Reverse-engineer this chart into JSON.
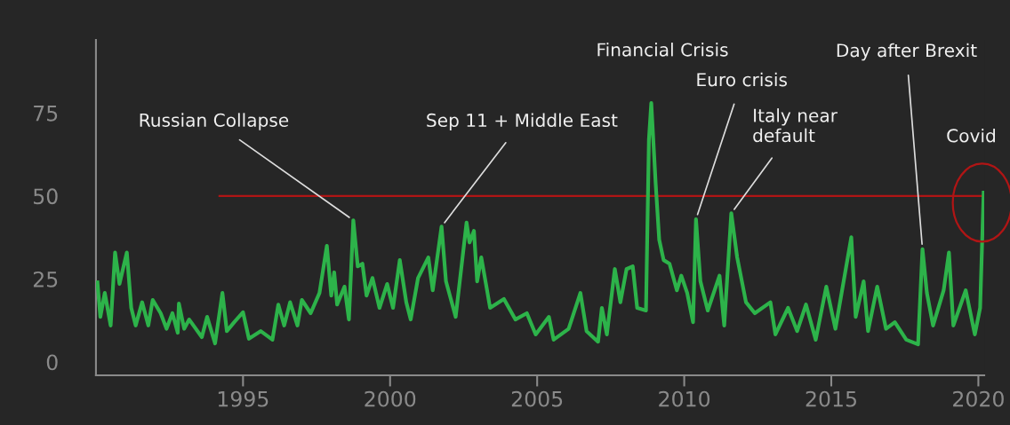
{
  "chart_data": {
    "type": "line",
    "xlim": [
      1990,
      2020.2
    ],
    "ylim": [
      -4,
      97
    ],
    "xticks": [
      1995,
      2000,
      2005,
      2010,
      2015,
      2020
    ],
    "yticks": [
      0,
      25,
      50,
      75
    ],
    "grid": false,
    "marker": "none",
    "line_style": "solid",
    "series": [
      {
        "color": "#2db34a",
        "x": [
          1990.05,
          1990.15,
          1990.3,
          1990.5,
          1990.65,
          1990.8,
          1991.05,
          1991.2,
          1991.35,
          1991.57,
          1991.78,
          1991.93,
          1992.2,
          1992.4,
          1992.6,
          1992.78,
          1992.82,
          1993.0,
          1993.17,
          1993.6,
          1993.78,
          1994.05,
          1994.3,
          1994.45,
          1994.7,
          1995.0,
          1995.2,
          1995.6,
          1996.0,
          1996.2,
          1996.4,
          1996.6,
          1996.85,
          1997.0,
          1997.3,
          1997.6,
          1997.85,
          1998.0,
          1998.1,
          1998.2,
          1998.45,
          1998.6,
          1998.75,
          1998.9,
          1999.06,
          1999.2,
          1999.4,
          1999.64,
          1999.9,
          2000.1,
          2000.33,
          2000.55,
          2000.7,
          2000.95,
          2001.3,
          2001.45,
          2001.75,
          2001.9,
          2002.23,
          2002.6,
          2002.7,
          2002.85,
          2002.96,
          2003.1,
          2003.26,
          2003.4,
          2003.87,
          2004.26,
          2004.65,
          2004.95,
          2005.4,
          2005.56,
          2006.07,
          2006.47,
          2006.68,
          2007.07,
          2007.2,
          2007.37,
          2007.64,
          2007.83,
          2008.04,
          2008.25,
          2008.4,
          2008.7,
          2008.8,
          2008.88,
          2009.03,
          2009.15,
          2009.3,
          2009.5,
          2009.75,
          2009.9,
          2010.1,
          2010.3,
          2010.4,
          2010.55,
          2010.8,
          2011.2,
          2011.36,
          2011.6,
          2011.8,
          2012.1,
          2012.4,
          2012.93,
          2013.1,
          2013.53,
          2013.84,
          2014.14,
          2014.47,
          2014.83,
          2015.14,
          2015.68,
          2015.83,
          2016.1,
          2016.25,
          2016.56,
          2016.86,
          2017.16,
          2017.55,
          2017.95,
          2018.1,
          2018.25,
          2018.46,
          2018.82,
          2019.0,
          2019.15,
          2019.57,
          2019.88,
          2020.06,
          2020.18
        ],
        "values": [
          24,
          13.6,
          20.8,
          11,
          33,
          23.5,
          33,
          16.3,
          11,
          18,
          11,
          18.7,
          14.7,
          10,
          14.7,
          8.8,
          17.6,
          10,
          12.8,
          7.5,
          13.6,
          5.6,
          20.8,
          9.3,
          12,
          15,
          7,
          9.3,
          6.7,
          17.3,
          11,
          18,
          11,
          18.7,
          14.7,
          20.8,
          35,
          20,
          27,
          17.3,
          22.7,
          12.8,
          42.7,
          28.8,
          29.6,
          20,
          25.3,
          16.3,
          23.5,
          16.3,
          30.7,
          18,
          12.8,
          25.3,
          31.5,
          21.6,
          40.8,
          24.3,
          13.6,
          42,
          36,
          39.5,
          24.3,
          31.5,
          23.5,
          16.3,
          19,
          12.8,
          14.7,
          8.3,
          13.6,
          6.7,
          10,
          20.8,
          9.3,
          6.1,
          16.3,
          8.3,
          28,
          18,
          28,
          28.8,
          16.3,
          15.5,
          67,
          78,
          53.6,
          36.8,
          30.7,
          29.6,
          21.6,
          26,
          20.8,
          12,
          43,
          24.3,
          15.5,
          26,
          11,
          44.8,
          31.5,
          18,
          14.7,
          18,
          8.3,
          16.3,
          9.3,
          17.3,
          6.7,
          22.7,
          10,
          37.6,
          13.6,
          24.3,
          9.3,
          22.7,
          10,
          12,
          6.7,
          5.3,
          34,
          20.8,
          11,
          21.6,
          33,
          11,
          21.6,
          8.3,
          16.3,
          51
        ]
      },
      {
        "color": "#b01515",
        "x": [
          1994.2,
          2020.1
        ],
        "values": [
          50,
          50
        ]
      }
    ],
    "annotations": [
      {
        "text": "Russian Collapse",
        "x": 1998.75,
        "y": 42.7
      },
      {
        "text": "Sep 11 + Middle East",
        "x": 2001.75,
        "y": 40.8
      },
      {
        "text": "Financial Crisis",
        "x": 2008.88,
        "y": 78
      },
      {
        "text": "Euro crisis",
        "x": 2010.4,
        "y": 43
      },
      {
        "text": "Italy near\ndefault",
        "x": 2011.6,
        "y": 44.8
      },
      {
        "text": "Day after Brexit",
        "x": 2018.1,
        "y": 34
      },
      {
        "text": "Covid",
        "x": 2020.18,
        "y": 51
      }
    ]
  }
}
